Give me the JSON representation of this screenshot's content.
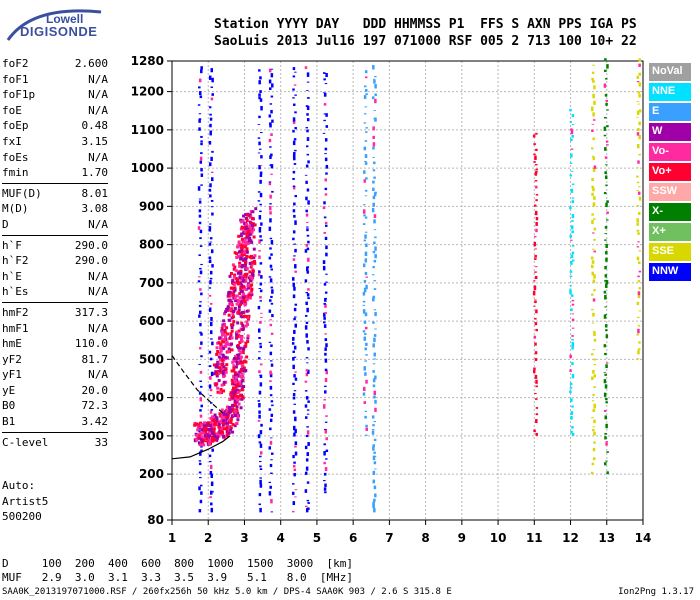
{
  "logo": {
    "line1": "Lowell",
    "line2": "DIGISONDE"
  },
  "header": {
    "line1": "Station YYYY DAY   DDD HHMMSS P1  FFS S AXN PPS IGA PS",
    "line2": "SaoLuis 2013 Jul16 197 071000 RSF 005 2 713 100 10+ 22"
  },
  "params": [
    {
      "name": "foF2",
      "value": "2.600"
    },
    {
      "name": "foF1",
      "value": "N/A"
    },
    {
      "name": "foF1p",
      "value": "N/A"
    },
    {
      "name": "foE",
      "value": "N/A"
    },
    {
      "name": "foEp",
      "value": "0.48"
    },
    {
      "name": "fxI",
      "value": "3.15"
    },
    {
      "name": "foEs",
      "value": "N/A"
    },
    {
      "name": "fmin",
      "value": "1.70"
    },
    {
      "sep": true
    },
    {
      "name": "MUF(D)",
      "value": "8.01"
    },
    {
      "name": "M(D)",
      "value": "3.08"
    },
    {
      "name": "D",
      "value": "N/A"
    },
    {
      "sep": true
    },
    {
      "name": "h`F",
      "value": "290.0"
    },
    {
      "name": "h`F2",
      "value": "290.0"
    },
    {
      "name": "h`E",
      "value": "N/A"
    },
    {
      "name": "h`Es",
      "value": "N/A"
    },
    {
      "sep": true
    },
    {
      "name": "hmF2",
      "value": "317.3"
    },
    {
      "name": "hmF1",
      "value": "N/A"
    },
    {
      "name": "hmE",
      "value": "110.0"
    },
    {
      "name": "yF2",
      "value": "81.7"
    },
    {
      "name": "yF1",
      "value": "N/A"
    },
    {
      "name": "yE",
      "value": "20.0"
    },
    {
      "name": "B0",
      "value": "72.3"
    },
    {
      "name": "B1",
      "value": "3.42"
    },
    {
      "sep": true
    },
    {
      "name": "C-level",
      "value": "33"
    }
  ],
  "autoscale": {
    "text": "Auto:\nArtist5\n500200"
  },
  "legend": [
    {
      "label": "NoVal",
      "color": "#a0a0a0"
    },
    {
      "label": "NNE",
      "color": "#00e0ff"
    },
    {
      "label": "E",
      "color": "#3aa0ff"
    },
    {
      "label": "W",
      "color": "#a000a8"
    },
    {
      "label": "Vo-",
      "color": "#ff2aa0"
    },
    {
      "label": "Vo+",
      "color": "#ff0030"
    },
    {
      "label": "SSW",
      "color": "#ffa8a8"
    },
    {
      "label": "X-",
      "color": "#008000"
    },
    {
      "label": "X+",
      "color": "#70c060"
    },
    {
      "label": "SSE",
      "color": "#d8d800"
    },
    {
      "label": "NNW",
      "color": "#0000ff"
    }
  ],
  "chart_data": {
    "type": "scatter",
    "title": "",
    "xlabel": "",
    "ylabel": "",
    "xlim": [
      1,
      14
    ],
    "ylim": [
      80,
      1280
    ],
    "x_ticks": [
      1,
      2,
      3,
      4,
      5,
      6,
      7,
      8,
      9,
      10,
      11,
      12,
      13,
      14
    ],
    "y_ticks": [
      80,
      200,
      300,
      400,
      500,
      600,
      700,
      800,
      900,
      1000,
      1100,
      1200,
      1280
    ],
    "grid": true,
    "dense_traces": [
      {
        "name": "F2 trace",
        "x": [
          1.7,
          1.9,
          2.2,
          2.5,
          2.7,
          2.8,
          2.9,
          3.0,
          3.1
        ],
        "y": [
          295,
          300,
          310,
          330,
          380,
          450,
          560,
          680,
          780
        ],
        "colors": [
          "#ff0030",
          "#ff2aa0",
          "#a000a8"
        ]
      },
      {
        "name": "F2 upper",
        "x": [
          2.2,
          2.4,
          2.6,
          2.8,
          3.0,
          3.1
        ],
        "y": [
          420,
          520,
          620,
          720,
          820,
          860
        ],
        "colors": [
          "#ff2aa0",
          "#a000a8",
          "#ff0030"
        ]
      }
    ],
    "vertical_streaks": [
      {
        "x": 1.75,
        "y0": 100,
        "y1": 1260,
        "color": "#0000ff"
      },
      {
        "x": 2.05,
        "y0": 100,
        "y1": 1260,
        "color": "#0000ff"
      },
      {
        "x": 3.4,
        "y0": 100,
        "y1": 1260,
        "color": "#0000ff"
      },
      {
        "x": 3.7,
        "y0": 100,
        "y1": 1260,
        "color": "#0000ff"
      },
      {
        "x": 4.35,
        "y0": 100,
        "y1": 1260,
        "color": "#0000ff"
      },
      {
        "x": 4.7,
        "y0": 100,
        "y1": 1260,
        "color": "#0000ff"
      },
      {
        "x": 5.2,
        "y0": 150,
        "y1": 1260,
        "color": "#0000ff"
      },
      {
        "x": 6.3,
        "y0": 300,
        "y1": 1250,
        "color": "#3aa0ff"
      },
      {
        "x": 6.55,
        "y0": 100,
        "y1": 1260,
        "color": "#3aa0ff"
      },
      {
        "x": 11.0,
        "y0": 300,
        "y1": 1100,
        "color": "#ff0030"
      },
      {
        "x": 12.0,
        "y0": 300,
        "y1": 1150,
        "color": "#00e0ff"
      },
      {
        "x": 12.6,
        "y0": 200,
        "y1": 1280,
        "color": "#d8d800"
      },
      {
        "x": 12.95,
        "y0": 200,
        "y1": 1280,
        "color": "#008000"
      },
      {
        "x": 13.85,
        "y0": 500,
        "y1": 1280,
        "color": "#d8d800"
      }
    ],
    "profile_curve": {
      "x": [
        1.0,
        1.5,
        2.0,
        2.4,
        2.6
      ],
      "y": [
        240,
        245,
        265,
        285,
        300
      ]
    },
    "dashed_curve": {
      "x": [
        1.0,
        1.3,
        1.7,
        2.1,
        2.4
      ],
      "y": [
        510,
        470,
        420,
        385,
        360
      ]
    }
  },
  "footer": {
    "line1": "D     100  200  400  600  800  1000  1500  3000  [km]",
    "line2": "MUF   2.9  3.0  3.1  3.3  3.5  3.9   5.1   8.0  [MHz]",
    "line3": "SAA0K_2013197071000.RSF / 260fx256h 50 kHz 5.0 km / DPS-4 SAA0K 903 / 2.6 S 315.8 E",
    "line3_right": "Ion2Png 1.3.17"
  }
}
